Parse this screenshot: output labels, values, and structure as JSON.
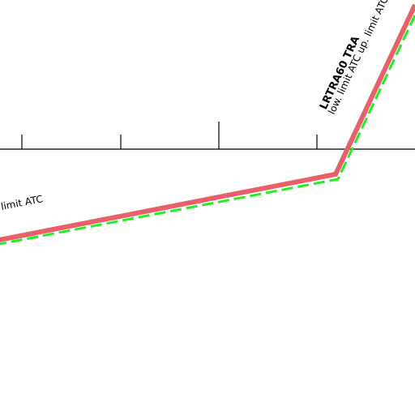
{
  "map": {
    "colors": {
      "background": "#ffffff",
      "airspace_border": "#e8606a",
      "airspace_inner_dash": "#22ee22",
      "scale_line": "#000000",
      "label_text": "#000000"
    },
    "airspace": {
      "name": "LRTRA60 TRA",
      "limits_text": "low. limit ATC up. limit ATC",
      "limits_text_left": "limit ATC"
    }
  }
}
